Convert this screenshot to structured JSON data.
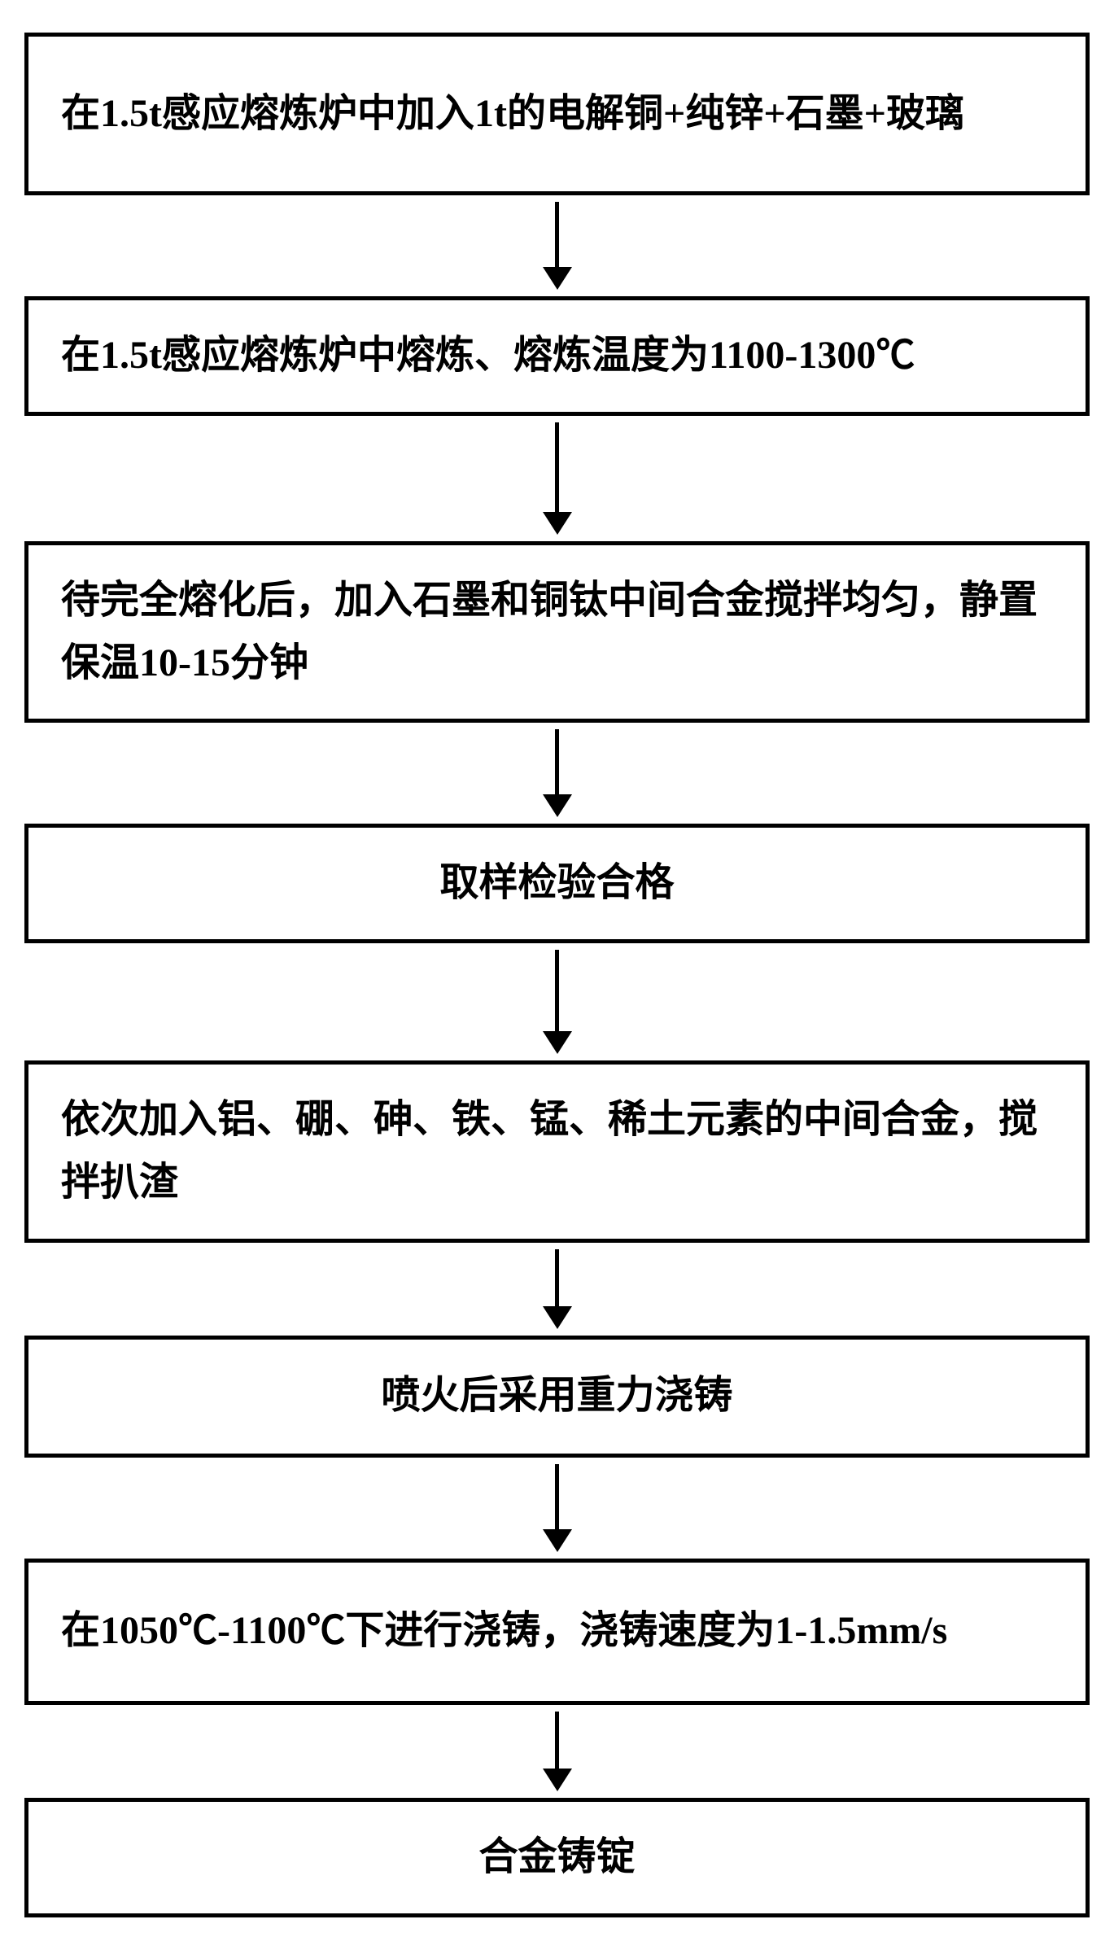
{
  "flowchart": {
    "type": "flowchart",
    "direction": "vertical",
    "border_color": "#000000",
    "border_width": 5,
    "background_color": "#ffffff",
    "text_color": "#000000",
    "font_size": 48,
    "font_weight": "bold",
    "arrow_color": "#000000",
    "arrow_line_width": 5,
    "steps": [
      {
        "text": "在1.5t感应熔炼炉中加入1t的电解铜+纯锌+石墨+玻璃",
        "align": "left",
        "min_height": 200,
        "arrow_after_height": 80
      },
      {
        "text": "在1.5t感应熔炼炉中熔炼、熔炼温度为1100-1300℃",
        "align": "left",
        "min_height": 140,
        "arrow_after_height": 110
      },
      {
        "text": "待完全熔化后，加入石墨和铜钛中间合金搅拌均匀，静置保温10-15分钟",
        "align": "left",
        "min_height": 220,
        "arrow_after_height": 80
      },
      {
        "text": "取样检验合格",
        "align": "center",
        "min_height": 130,
        "arrow_after_height": 100
      },
      {
        "text": "依次加入铝、硼、砷、铁、锰、稀土元素的中间合金，搅拌扒渣",
        "align": "left",
        "min_height": 210,
        "arrow_after_height": 70
      },
      {
        "text": "喷火后采用重力浇铸",
        "align": "center",
        "min_height": 150,
        "arrow_after_height": 80
      },
      {
        "text": "在1050℃-1100℃下进行浇铸，浇铸速度为1-1.5mm/s",
        "align": "left",
        "min_height": 180,
        "arrow_after_height": 70
      },
      {
        "text": "合金铸锭",
        "align": "center",
        "min_height": 130,
        "arrow_after_height": 0
      }
    ]
  }
}
